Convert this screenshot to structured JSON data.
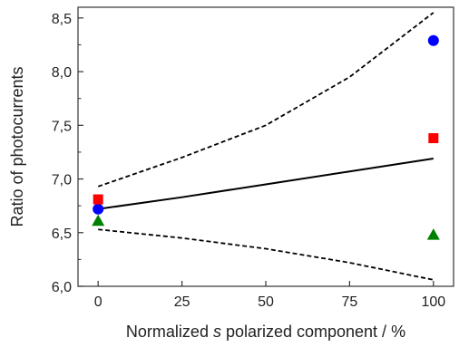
{
  "chart_data": {
    "type": "scatter",
    "xlabel_parts": [
      "Normalized ",
      "s",
      " polarized component / %"
    ],
    "ylabel": "Ratio of photocurrents",
    "xlim": [
      -6,
      106
    ],
    "ylim": [
      6.0,
      8.6
    ],
    "x_ticks": [
      0,
      25,
      50,
      75,
      100
    ],
    "x_tick_labels": [
      "0",
      "25",
      "50",
      "75",
      "100"
    ],
    "y_ticks": [
      6.0,
      6.5,
      7.0,
      7.5,
      8.0,
      8.5
    ],
    "y_tick_labels": [
      "6,0",
      "6,5",
      "7,0",
      "7,5",
      "8,0",
      "8,5"
    ],
    "grid": false,
    "series": [
      {
        "marker": "circle",
        "color": "#0000ff",
        "points": [
          {
            "x": 0,
            "y": 6.72
          },
          {
            "x": 100,
            "y": 8.29
          }
        ]
      },
      {
        "marker": "square",
        "color": "#ff0000",
        "points": [
          {
            "x": 0,
            "y": 6.81
          },
          {
            "x": 100,
            "y": 7.38
          }
        ]
      },
      {
        "marker": "triangle",
        "color": "#008000",
        "points": [
          {
            "x": 0,
            "y": 6.61
          },
          {
            "x": 100,
            "y": 6.48
          }
        ]
      }
    ],
    "lines": [
      {
        "style": "solid",
        "color": "#000000",
        "points": [
          {
            "x": 0,
            "y": 6.72
          },
          {
            "x": 25,
            "y": 6.83
          },
          {
            "x": 50,
            "y": 6.95
          },
          {
            "x": 75,
            "y": 7.07
          },
          {
            "x": 100,
            "y": 7.19
          }
        ]
      },
      {
        "style": "dashed",
        "color": "#000000",
        "points": [
          {
            "x": 0,
            "y": 6.93
          },
          {
            "x": 25,
            "y": 7.2
          },
          {
            "x": 50,
            "y": 7.5
          },
          {
            "x": 75,
            "y": 7.95
          },
          {
            "x": 100,
            "y": 8.55
          }
        ]
      },
      {
        "style": "dashed",
        "color": "#000000",
        "points": [
          {
            "x": 0,
            "y": 6.53
          },
          {
            "x": 25,
            "y": 6.45
          },
          {
            "x": 50,
            "y": 6.35
          },
          {
            "x": 75,
            "y": 6.22
          },
          {
            "x": 100,
            "y": 6.06
          }
        ]
      }
    ]
  }
}
